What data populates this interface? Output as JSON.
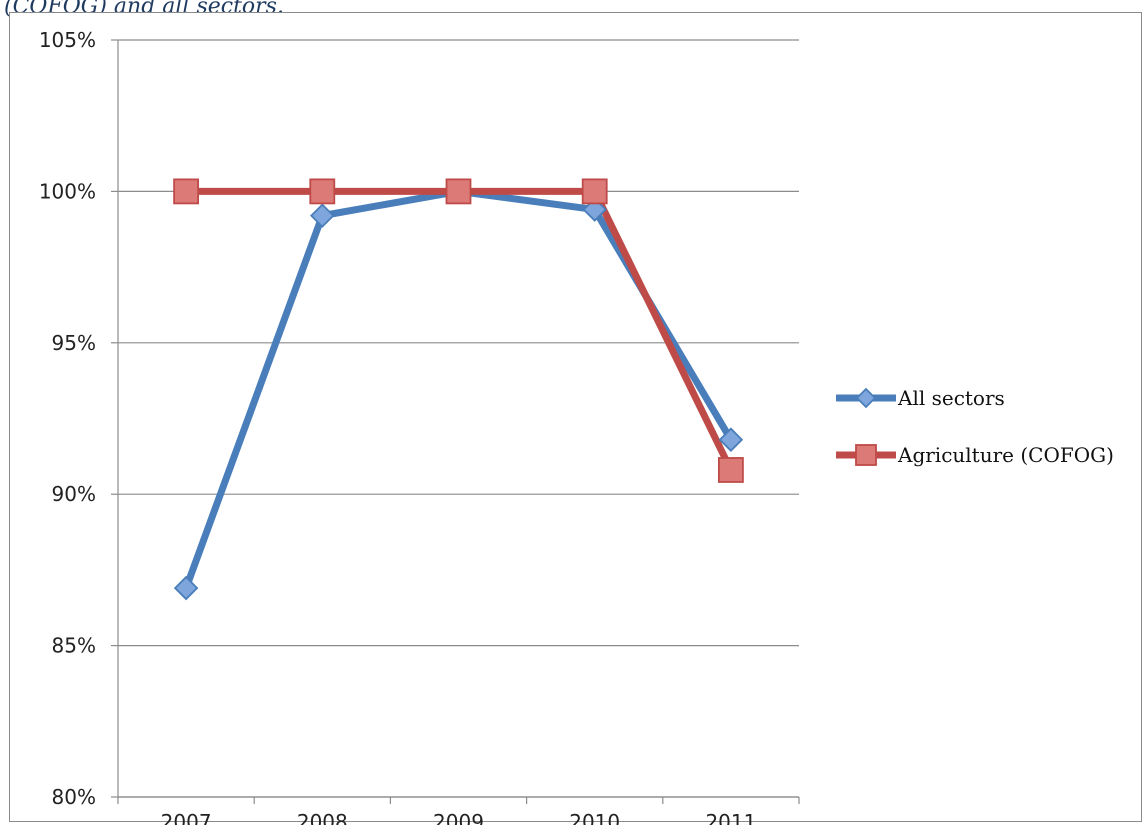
{
  "caption": "(COFOG) and all sectors.",
  "chart_data": {
    "type": "line",
    "title": "",
    "xlabel": "",
    "ylabel": "",
    "categories": [
      "2007",
      "2008",
      "2009",
      "2010",
      "2011"
    ],
    "yticks": [
      "80%",
      "85%",
      "90%",
      "95%",
      "100%",
      "105%"
    ],
    "ylim": [
      80,
      105
    ],
    "grid": "horizontal",
    "legend_position": "right",
    "series": [
      {
        "name": "All sectors",
        "color": "#4a7ebb",
        "marker": "diamond",
        "values": [
          86.9,
          99.2,
          100.0,
          99.4,
          91.8
        ]
      },
      {
        "name": "Agriculture (COFOG)",
        "color": "#be4b48",
        "marker": "square",
        "values": [
          100.0,
          100.0,
          100.0,
          100.0,
          90.8
        ]
      }
    ]
  }
}
